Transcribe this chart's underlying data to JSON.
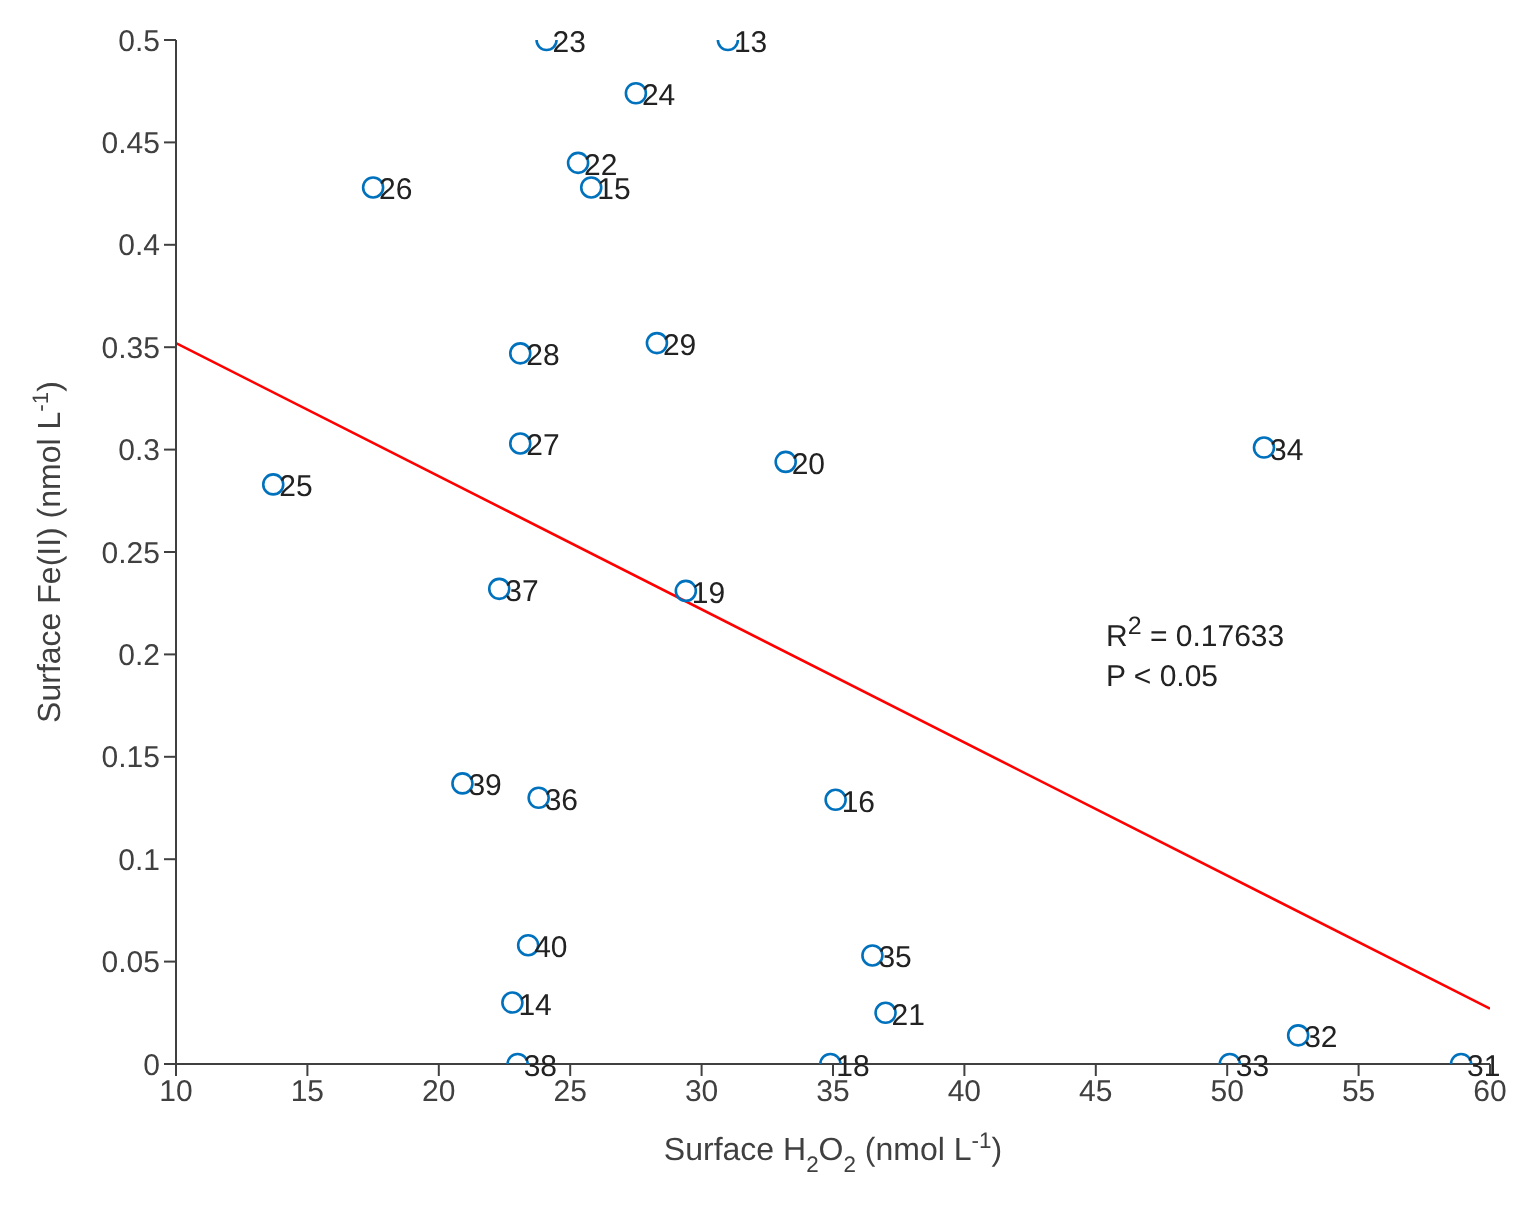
{
  "chart_data": {
    "type": "scatter",
    "xlabel": "Surface H$_{2}$O$_{2}$ (nmol L$^{-1}$)",
    "ylabel": "Surface Fe(II) (nmol L$^{-1}$)",
    "xlim": [
      10,
      60
    ],
    "xticks": [
      10,
      15,
      20,
      25,
      30,
      35,
      40,
      45,
      50,
      55,
      60
    ],
    "ylim": [
      0,
      0.5
    ],
    "yticks": [
      0,
      0.05,
      0.1,
      0.15,
      0.2,
      0.25,
      0.3,
      0.35,
      0.4,
      0.45,
      0.5
    ],
    "grid": false,
    "legend": false,
    "series": [
      {
        "marker": "circle",
        "color": "#0072bd",
        "x": [
          24.1,
          31.0,
          27.5,
          25.3,
          25.8,
          17.5,
          23.1,
          28.3,
          23.1,
          33.2,
          13.7,
          51.4,
          22.3,
          29.4,
          35.1,
          20.9,
          23.8,
          23.4,
          36.5,
          22.8,
          37.0,
          34.9,
          23.0,
          50.1,
          52.7,
          58.9
        ],
        "values": [
          0.5,
          0.5,
          0.474,
          0.44,
          0.428,
          0.428,
          0.347,
          0.352,
          0.303,
          0.294,
          0.283,
          0.301,
          0.232,
          0.231,
          0.129,
          0.137,
          0.13,
          0.058,
          0.053,
          0.03,
          0.025,
          0,
          0,
          0,
          0.014,
          0
        ]
      },
      {
        "type": "line",
        "marker": "none",
        "color": "#ff0000",
        "x": [
          10,
          60
        ],
        "values": [
          0.352,
          0.027
        ]
      }
    ],
    "annotations": [
      {
        "text": "23",
        "x": 24.1,
        "y": 0.5
      },
      {
        "text": "13",
        "x": 31.0,
        "y": 0.5
      },
      {
        "text": "24",
        "x": 27.5,
        "y": 0.474
      },
      {
        "text": "22",
        "x": 25.3,
        "y": 0.44
      },
      {
        "text": "15",
        "x": 25.8,
        "y": 0.428
      },
      {
        "text": "26",
        "x": 17.5,
        "y": 0.428
      },
      {
        "text": "28",
        "x": 23.1,
        "y": 0.347
      },
      {
        "text": "29",
        "x": 28.3,
        "y": 0.352
      },
      {
        "text": "27",
        "x": 23.1,
        "y": 0.303
      },
      {
        "text": "20",
        "x": 33.2,
        "y": 0.294
      },
      {
        "text": "25",
        "x": 13.7,
        "y": 0.283
      },
      {
        "text": "34",
        "x": 51.4,
        "y": 0.301
      },
      {
        "text": "37",
        "x": 22.3,
        "y": 0.232
      },
      {
        "text": "19",
        "x": 29.4,
        "y": 0.231
      },
      {
        "text": "16",
        "x": 35.1,
        "y": 0.129
      },
      {
        "text": "39",
        "x": 20.9,
        "y": 0.137
      },
      {
        "text": "36",
        "x": 23.8,
        "y": 0.13
      },
      {
        "text": "40",
        "x": 23.4,
        "y": 0.058
      },
      {
        "text": "35",
        "x": 36.5,
        "y": 0.053
      },
      {
        "text": "14",
        "x": 22.8,
        "y": 0.03
      },
      {
        "text": "21",
        "x": 37.0,
        "y": 0.025
      },
      {
        "text": "18",
        "x": 34.9,
        "y": 0
      },
      {
        "text": "38",
        "x": 23.0,
        "y": 0
      },
      {
        "text": "33",
        "x": 50.1,
        "y": 0
      },
      {
        "text": "32",
        "x": 52.7,
        "y": 0.014
      },
      {
        "text": "31",
        "x": 58.9,
        "y": 0
      },
      "R$^{2}$ = 0.17633",
      "P < 0.05"
    ]
  }
}
